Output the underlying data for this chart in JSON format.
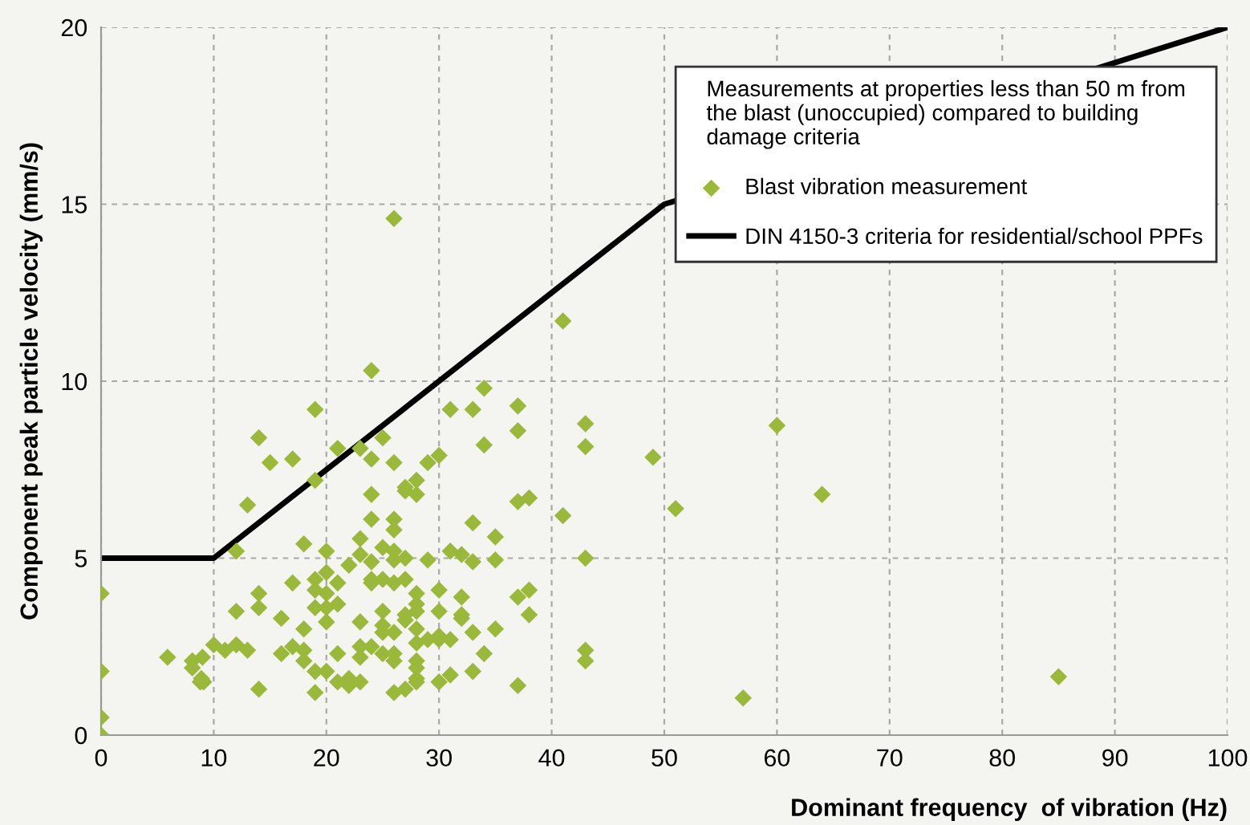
{
  "chart_data": {
    "type": "scatter",
    "xlabel": "Dominant frequency  of vibration (Hz)",
    "ylabel": "Component peak particle velocity (mm/s)",
    "legend_title": "Measurements at properties less than 50 m from\nthe blast (unoccupied) compared to building\ndamage criteria",
    "xlim": [
      0,
      100
    ],
    "ylim": [
      0,
      20
    ],
    "xticks": [
      0,
      10,
      20,
      30,
      40,
      50,
      60,
      70,
      80,
      90,
      100
    ],
    "yticks": [
      0,
      5,
      10,
      15,
      20
    ],
    "grid": true,
    "legend": "top right",
    "series": [
      {
        "name": "Blast vibration measurement",
        "marker": "diamond",
        "color": "#9ab83a",
        "x": [
          0,
          0,
          0,
          0,
          5.9,
          8.1,
          8.1,
          9,
          8.9,
          9.1,
          8.8,
          10,
          11,
          12,
          12,
          12,
          13,
          13,
          14,
          14,
          14,
          14,
          15,
          16,
          16,
          17,
          17,
          17,
          18,
          18,
          18,
          18,
          19,
          19,
          19,
          19,
          19,
          19,
          19,
          20,
          20,
          20,
          20,
          20,
          20,
          21,
          21,
          21,
          21,
          21,
          22,
          22,
          22,
          23,
          23,
          23,
          23,
          23,
          23,
          23,
          24,
          24,
          24,
          24,
          24,
          24,
          24,
          24,
          25,
          25,
          25,
          25,
          25,
          25,
          25,
          26,
          26,
          26,
          26,
          26,
          26,
          26,
          26,
          26,
          26,
          26,
          27,
          27,
          27,
          27,
          27,
          27,
          27,
          28,
          28,
          28,
          28,
          28,
          28,
          28,
          28,
          28,
          28,
          28,
          29,
          29,
          29,
          30,
          30,
          30,
          30,
          30,
          30,
          31,
          31,
          31,
          31,
          32,
          32,
          32,
          32,
          33,
          33,
          33,
          33,
          33,
          34,
          34,
          34,
          35,
          35,
          35,
          37,
          37,
          37,
          37,
          37,
          38,
          38,
          38,
          41,
          41,
          43,
          43,
          43,
          43,
          43,
          49,
          51,
          57,
          60,
          64,
          85
        ],
        "values": [
          4.0,
          1.8,
          0.5,
          0,
          2.2,
          2.1,
          1.9,
          2.2,
          1.6,
          1.5,
          1.5,
          2.55,
          2.4,
          5.2,
          3.5,
          2.55,
          6.5,
          2.4,
          8.4,
          4.0,
          3.6,
          1.3,
          7.7,
          3.3,
          2.3,
          7.8,
          4.3,
          2.5,
          5.4,
          3.0,
          2.4,
          2.1,
          9.2,
          7.2,
          4.4,
          4.1,
          3.6,
          1.8,
          1.2,
          5.2,
          4.6,
          4.0,
          3.6,
          3.2,
          1.8,
          8.1,
          4.3,
          3.7,
          2.3,
          1.5,
          4.8,
          1.6,
          1.4,
          8.1,
          5.55,
          5.1,
          3.2,
          2.5,
          2.2,
          1.5,
          10.3,
          7.8,
          6.8,
          6.1,
          4.9,
          4.4,
          4.3,
          2.5,
          8.4,
          5.3,
          4.4,
          3.5,
          3.1,
          2.9,
          2.3,
          14.6,
          7.7,
          6.1,
          5.8,
          5.2,
          4.95,
          4.3,
          2.9,
          2.3,
          2.1,
          1.2,
          7.0,
          6.9,
          5.0,
          4.4,
          3.4,
          3.25,
          1.3,
          7.2,
          6.8,
          4.0,
          3.7,
          3.5,
          3.0,
          2.6,
          2.1,
          1.9,
          1.6,
          1.5,
          7.7,
          4.95,
          2.7,
          7.9,
          4.1,
          3.5,
          2.8,
          2.7,
          1.5,
          9.2,
          5.2,
          2.7,
          1.7,
          5.1,
          3.9,
          3.4,
          3.3,
          9.2,
          6.0,
          4.9,
          2.9,
          1.8,
          9.8,
          8.2,
          2.3,
          5.6,
          4.95,
          3.0,
          9.3,
          8.6,
          6.6,
          3.9,
          1.4,
          6.7,
          4.1,
          3.4,
          11.7,
          6.2,
          8.8,
          8.15,
          5.0,
          2.4,
          2.1,
          7.85,
          6.4,
          1.05,
          8.75,
          6.8,
          1.65
        ]
      },
      {
        "name": "DIN 4150-3 criteria for residential/school PPFs",
        "type": "line",
        "color": "#000000",
        "marker": "none",
        "line_style": "solid",
        "x": [
          0,
          10,
          50,
          100
        ],
        "values": [
          5,
          5,
          15,
          20
        ]
      }
    ]
  }
}
